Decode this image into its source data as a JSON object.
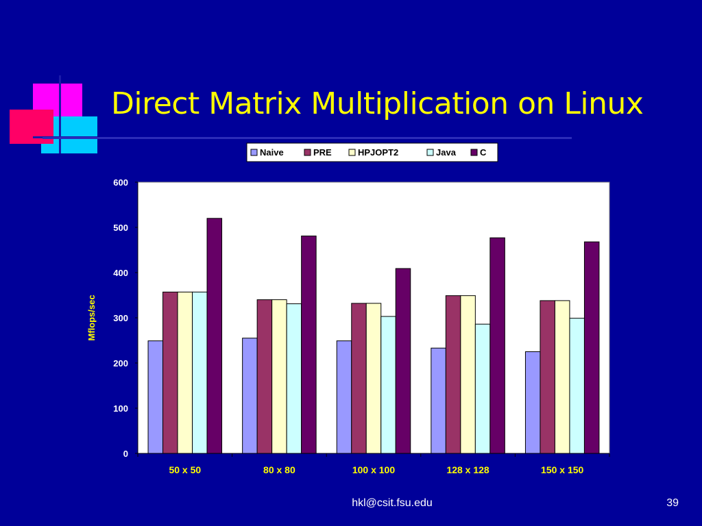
{
  "slide": {
    "title": "Direct Matrix Multiplication on Linux",
    "footer_email": "hkl@csit.fsu.edu",
    "page_number": "39"
  },
  "colors": {
    "background": "#000099",
    "title": "#ffff00",
    "axis_label": "#ffff00",
    "tick_label": "#ffffff"
  },
  "chart_data": {
    "type": "bar",
    "title": "",
    "xlabel": "",
    "ylabel": "Mflops/sec",
    "ylim": [
      0,
      600
    ],
    "yticks": [
      0,
      100,
      200,
      300,
      400,
      500,
      600
    ],
    "grid": false,
    "legend_position": "top",
    "categories": [
      "50 x 50",
      "80 x 80",
      "100 x 100",
      "128 x 128",
      "150 x 150"
    ],
    "series": [
      {
        "name": "Naive",
        "color": "#9999ff",
        "values": [
          249,
          255,
          249,
          233,
          225
        ]
      },
      {
        "name": "PRE",
        "color": "#993366",
        "values": [
          357,
          340,
          332,
          349,
          338
        ]
      },
      {
        "name": "HPJOPT2",
        "color": "#ffffcc",
        "values": [
          357,
          340,
          332,
          349,
          338
        ]
      },
      {
        "name": "Java",
        "color": "#ccffff",
        "values": [
          357,
          331,
          303,
          286,
          299
        ]
      },
      {
        "name": "C",
        "color": "#660066",
        "values": [
          520,
          481,
          409,
          477,
          468
        ]
      }
    ]
  }
}
